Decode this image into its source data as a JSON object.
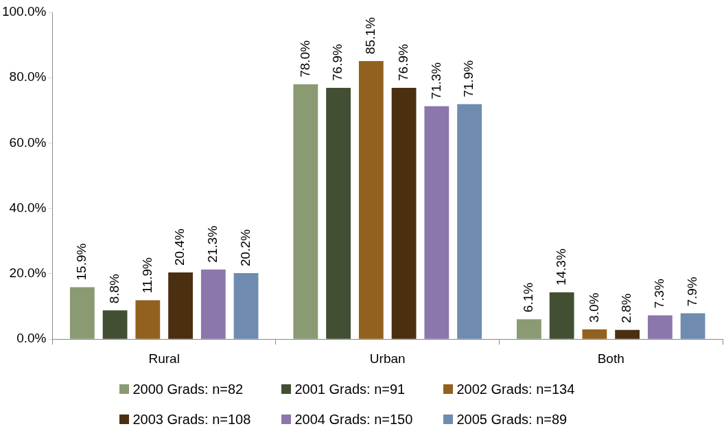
{
  "chart_data": {
    "type": "bar",
    "categories": [
      "Rural",
      "Urban",
      "Both"
    ],
    "series": [
      {
        "name": "2000 Grads: n=82",
        "color": "#8a9a73",
        "values": [
          15.9,
          78.0,
          6.1
        ],
        "value_labels": [
          "15.9%",
          "78.0%",
          "6.1%"
        ]
      },
      {
        "name": "2001 Grads: n=91",
        "color": "#434f33",
        "values": [
          8.8,
          76.9,
          14.3
        ],
        "value_labels": [
          "8.8%",
          "76.9%",
          "14.3%"
        ]
      },
      {
        "name": "2002 Grads: n=134",
        "color": "#93611f",
        "values": [
          11.9,
          85.1,
          3.0
        ],
        "value_labels": [
          "11.9%",
          "85.1%",
          "3.0%"
        ]
      },
      {
        "name": "2003 Grads: n=108",
        "color": "#4a3010",
        "values": [
          20.4,
          76.9,
          2.8
        ],
        "value_labels": [
          "20.4%",
          "76.9%",
          "2.8%"
        ]
      },
      {
        "name": "2004 Grads: n=150",
        "color": "#8b77ab",
        "values": [
          21.3,
          71.3,
          7.3
        ],
        "value_labels": [
          "21.3%",
          "71.3%",
          "7.3%"
        ]
      },
      {
        "name": "2005 Grads: n=89",
        "color": "#6f8cb0",
        "values": [
          20.2,
          71.9,
          7.9
        ],
        "value_labels": [
          "20.2%",
          "71.9%",
          "7.9%"
        ]
      }
    ],
    "ylim": [
      0,
      100
    ],
    "yticks": [
      {
        "value": 0,
        "label": "0.0%"
      },
      {
        "value": 20,
        "label": "20.0%"
      },
      {
        "value": 40,
        "label": "40.0%"
      },
      {
        "value": 60,
        "label": "60.0%"
      },
      {
        "value": 80,
        "label": "80.0%"
      },
      {
        "value": 100,
        "label": "100.0%"
      }
    ],
    "grid": false,
    "legend": "bottom"
  }
}
